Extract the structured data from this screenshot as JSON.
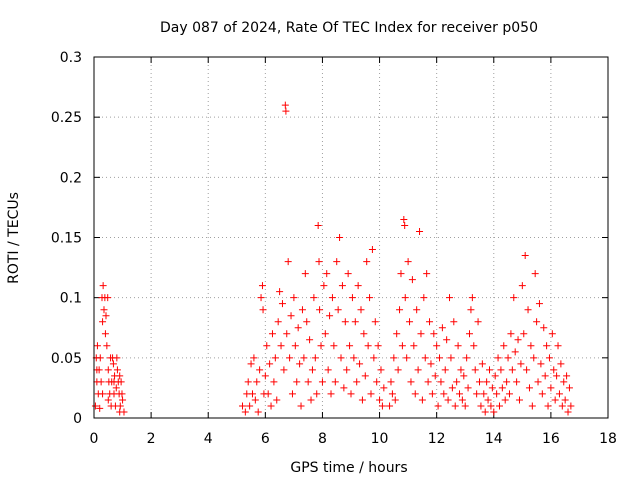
{
  "chart_data": {
    "type": "scatter",
    "title": "Day 087 of 2024, Rate Of TEC Index for receiver p050",
    "xlabel": "GPS time / hours",
    "ylabel": "ROTI / TECUs",
    "xlim": [
      0,
      18
    ],
    "ylim": [
      0,
      0.3
    ],
    "xticks": [
      0,
      2,
      4,
      6,
      8,
      10,
      12,
      14,
      16,
      18
    ],
    "xtick_labels": [
      "0",
      "2",
      "4",
      "6",
      "8",
      "10",
      "12",
      "14",
      "16",
      "18"
    ],
    "yticks": [
      0,
      0.05,
      0.1,
      0.15,
      0.2,
      0.25,
      0.3
    ],
    "ytick_labels": [
      "0",
      "0.05",
      "0.1",
      "0.15",
      "0.2",
      "0.25",
      "0.3"
    ],
    "grid": true,
    "marker": "+",
    "color": "#ff0000",
    "series": [
      {
        "name": "ROTI",
        "points": [
          [
            0.05,
            0.01
          ],
          [
            0.08,
            0.05
          ],
          [
            0.1,
            0.03
          ],
          [
            0.12,
            0.06
          ],
          [
            0.15,
            0.02
          ],
          [
            0.18,
            0.04
          ],
          [
            0.2,
            0.008
          ],
          [
            0.22,
            0.05
          ],
          [
            0.25,
            0.03
          ],
          [
            0.28,
            0.1
          ],
          [
            0.3,
            0.08
          ],
          [
            0.32,
            0.11
          ],
          [
            0.35,
            0.09
          ],
          [
            0.38,
            0.1
          ],
          [
            0.4,
            0.07
          ],
          [
            0.42,
            0.085
          ],
          [
            0.45,
            0.06
          ],
          [
            0.48,
            0.1
          ],
          [
            0.5,
            0.04
          ],
          [
            0.52,
            0.03
          ],
          [
            0.55,
            0.02
          ],
          [
            0.58,
            0.05
          ],
          [
            0.6,
            0.01
          ],
          [
            0.62,
            0.03
          ],
          [
            0.65,
            0.05
          ],
          [
            0.68,
            0.045
          ],
          [
            0.7,
            0.02
          ],
          [
            0.72,
            0.035
          ],
          [
            0.75,
            0.01
          ],
          [
            0.78,
            0.025
          ],
          [
            0.8,
            0.05
          ],
          [
            0.82,
            0.04
          ],
          [
            0.85,
            0.03
          ],
          [
            0.88,
            0.02
          ],
          [
            0.9,
            0.035
          ],
          [
            0.92,
            0.01
          ],
          [
            0.95,
            0.03
          ],
          [
            0.98,
            0.02
          ],
          [
            1.0,
            0.015
          ],
          [
            1.05,
            0.005
          ],
          [
            0.1,
            0.04
          ],
          [
            0.3,
            0.02
          ],
          [
            0.5,
            0.015
          ],
          [
            0.7,
            0.03
          ],
          [
            0.9,
            0.005
          ],
          [
            5.2,
            0.01
          ],
          [
            5.3,
            0.005
          ],
          [
            5.35,
            0.02
          ],
          [
            5.4,
            0.03
          ],
          [
            5.45,
            0.01
          ],
          [
            5.5,
            0.045
          ],
          [
            5.55,
            0.02
          ],
          [
            5.6,
            0.05
          ],
          [
            5.65,
            0.015
          ],
          [
            5.7,
            0.03
          ],
          [
            5.75,
            0.005
          ],
          [
            5.8,
            0.04
          ],
          [
            5.85,
            0.1
          ],
          [
            5.9,
            0.11
          ],
          [
            5.92,
            0.09
          ],
          [
            5.95,
            0.02
          ],
          [
            6.0,
            0.035
          ],
          [
            6.05,
            0.06
          ],
          [
            6.1,
            0.02
          ],
          [
            6.15,
            0.045
          ],
          [
            6.2,
            0.01
          ],
          [
            6.25,
            0.07
          ],
          [
            6.3,
            0.03
          ],
          [
            6.35,
            0.05
          ],
          [
            6.4,
            0.015
          ],
          [
            6.45,
            0.08
          ],
          [
            6.5,
            0.105
          ],
          [
            6.55,
            0.06
          ],
          [
            6.6,
            0.095
          ],
          [
            6.65,
            0.04
          ],
          [
            6.7,
            0.26
          ],
          [
            6.72,
            0.255
          ],
          [
            6.75,
            0.07
          ],
          [
            6.8,
            0.13
          ],
          [
            6.85,
            0.05
          ],
          [
            6.9,
            0.085
          ],
          [
            6.95,
            0.02
          ],
          [
            7.0,
            0.1
          ],
          [
            7.05,
            0.06
          ],
          [
            7.1,
            0.03
          ],
          [
            7.15,
            0.075
          ],
          [
            7.2,
            0.045
          ],
          [
            7.25,
            0.01
          ],
          [
            7.3,
            0.09
          ],
          [
            7.35,
            0.05
          ],
          [
            7.4,
            0.12
          ],
          [
            7.45,
            0.08
          ],
          [
            7.5,
            0.03
          ],
          [
            7.55,
            0.065
          ],
          [
            7.6,
            0.015
          ],
          [
            7.65,
            0.04
          ],
          [
            7.7,
            0.1
          ],
          [
            7.75,
            0.05
          ],
          [
            7.8,
            0.02
          ],
          [
            7.85,
            0.16
          ],
          [
            7.88,
            0.13
          ],
          [
            7.9,
            0.09
          ],
          [
            7.95,
            0.06
          ],
          [
            8.0,
            0.03
          ],
          [
            8.05,
            0.11
          ],
          [
            8.1,
            0.07
          ],
          [
            8.15,
            0.12
          ],
          [
            8.2,
            0.04
          ],
          [
            8.25,
            0.085
          ],
          [
            8.3,
            0.02
          ],
          [
            8.35,
            0.1
          ],
          [
            8.4,
            0.06
          ],
          [
            8.45,
            0.03
          ],
          [
            8.5,
            0.13
          ],
          [
            8.55,
            0.09
          ],
          [
            8.6,
            0.15
          ],
          [
            8.65,
            0.05
          ],
          [
            8.7,
            0.11
          ],
          [
            8.75,
            0.025
          ],
          [
            8.8,
            0.08
          ],
          [
            8.85,
            0.04
          ],
          [
            8.9,
            0.12
          ],
          [
            8.95,
            0.06
          ],
          [
            9.0,
            0.02
          ],
          [
            9.05,
            0.1
          ],
          [
            9.1,
            0.05
          ],
          [
            9.15,
            0.08
          ],
          [
            9.2,
            0.03
          ],
          [
            9.25,
            0.11
          ],
          [
            9.3,
            0.045
          ],
          [
            9.35,
            0.09
          ],
          [
            9.4,
            0.015
          ],
          [
            9.45,
            0.07
          ],
          [
            9.5,
            0.035
          ],
          [
            9.55,
            0.13
          ],
          [
            9.6,
            0.06
          ],
          [
            9.65,
            0.1
          ],
          [
            9.7,
            0.02
          ],
          [
            9.75,
            0.14
          ],
          [
            9.8,
            0.05
          ],
          [
            9.85,
            0.08
          ],
          [
            9.9,
            0.03
          ],
          [
            9.95,
            0.06
          ],
          [
            10.0,
            0.015
          ],
          [
            10.05,
            0.04
          ],
          [
            10.1,
            0.01
          ],
          [
            10.15,
            0.025
          ],
          [
            10.35,
            0.01
          ],
          [
            10.4,
            0.03
          ],
          [
            10.45,
            0.02
          ],
          [
            10.5,
            0.05
          ],
          [
            10.55,
            0.015
          ],
          [
            10.6,
            0.07
          ],
          [
            10.65,
            0.04
          ],
          [
            10.7,
            0.09
          ],
          [
            10.75,
            0.12
          ],
          [
            10.8,
            0.06
          ],
          [
            10.85,
            0.165
          ],
          [
            10.88,
            0.16
          ],
          [
            10.9,
            0.1
          ],
          [
            10.95,
            0.05
          ],
          [
            11.0,
            0.13
          ],
          [
            11.05,
            0.08
          ],
          [
            11.1,
            0.03
          ],
          [
            11.15,
            0.115
          ],
          [
            11.2,
            0.06
          ],
          [
            11.25,
            0.02
          ],
          [
            11.3,
            0.09
          ],
          [
            11.35,
            0.04
          ],
          [
            11.4,
            0.155
          ],
          [
            11.45,
            0.07
          ],
          [
            11.5,
            0.015
          ],
          [
            11.55,
            0.1
          ],
          [
            11.6,
            0.05
          ],
          [
            11.65,
            0.12
          ],
          [
            11.7,
            0.03
          ],
          [
            11.75,
            0.08
          ],
          [
            11.8,
            0.045
          ],
          [
            11.85,
            0.02
          ],
          [
            11.9,
            0.07
          ],
          [
            11.95,
            0.035
          ],
          [
            12.0,
            0.06
          ],
          [
            12.05,
            0.01
          ],
          [
            12.1,
            0.05
          ],
          [
            12.15,
            0.03
          ],
          [
            12.2,
            0.075
          ],
          [
            12.25,
            0.02
          ],
          [
            12.3,
            0.04
          ],
          [
            12.35,
            0.065
          ],
          [
            12.4,
            0.015
          ],
          [
            12.45,
            0.1
          ],
          [
            12.5,
            0.05
          ],
          [
            12.55,
            0.025
          ],
          [
            12.6,
            0.08
          ],
          [
            12.65,
            0.01
          ],
          [
            12.7,
            0.03
          ],
          [
            12.75,
            0.06
          ],
          [
            12.8,
            0.02
          ],
          [
            12.85,
            0.04
          ],
          [
            12.9,
            0.015
          ],
          [
            12.95,
            0.035
          ],
          [
            13.0,
            0.01
          ],
          [
            13.05,
            0.05
          ],
          [
            13.1,
            0.025
          ],
          [
            13.15,
            0.07
          ],
          [
            13.2,
            0.09
          ],
          [
            13.25,
            0.1
          ],
          [
            13.3,
            0.06
          ],
          [
            13.35,
            0.04
          ],
          [
            13.4,
            0.02
          ],
          [
            13.45,
            0.08
          ],
          [
            13.5,
            0.03
          ],
          [
            13.55,
            0.01
          ],
          [
            13.6,
            0.045
          ],
          [
            13.65,
            0.02
          ],
          [
            13.7,
            0.005
          ],
          [
            13.75,
            0.03
          ],
          [
            13.8,
            0.015
          ],
          [
            13.85,
            0.04
          ],
          [
            13.9,
            0.01
          ],
          [
            13.95,
            0.025
          ],
          [
            14.0,
            0.005
          ],
          [
            14.05,
            0.035
          ],
          [
            14.1,
            0.02
          ],
          [
            14.15,
            0.05
          ],
          [
            14.2,
            0.01
          ],
          [
            14.25,
            0.04
          ],
          [
            14.3,
            0.025
          ],
          [
            14.35,
            0.06
          ],
          [
            14.4,
            0.015
          ],
          [
            14.45,
            0.03
          ],
          [
            14.5,
            0.05
          ],
          [
            14.55,
            0.02
          ],
          [
            14.6,
            0.07
          ],
          [
            14.65,
            0.04
          ],
          [
            14.7,
            0.1
          ],
          [
            14.75,
            0.055
          ],
          [
            14.8,
            0.03
          ],
          [
            14.85,
            0.065
          ],
          [
            14.9,
            0.015
          ],
          [
            14.95,
            0.045
          ],
          [
            15.0,
            0.11
          ],
          [
            15.05,
            0.07
          ],
          [
            15.1,
            0.135
          ],
          [
            15.15,
            0.04
          ],
          [
            15.2,
            0.09
          ],
          [
            15.25,
            0.025
          ],
          [
            15.3,
            0.06
          ],
          [
            15.35,
            0.01
          ],
          [
            15.4,
            0.05
          ],
          [
            15.45,
            0.12
          ],
          [
            15.5,
            0.08
          ],
          [
            15.55,
            0.03
          ],
          [
            15.6,
            0.095
          ],
          [
            15.65,
            0.045
          ],
          [
            15.7,
            0.02
          ],
          [
            15.75,
            0.075
          ],
          [
            15.8,
            0.035
          ],
          [
            15.85,
            0.06
          ],
          [
            15.9,
            0.01
          ],
          [
            15.95,
            0.05
          ],
          [
            16.0,
            0.025
          ],
          [
            16.05,
            0.07
          ],
          [
            16.1,
            0.04
          ],
          [
            16.15,
            0.015
          ],
          [
            16.2,
            0.035
          ],
          [
            16.25,
            0.06
          ],
          [
            16.3,
            0.02
          ],
          [
            16.35,
            0.045
          ],
          [
            16.4,
            0.01
          ],
          [
            16.45,
            0.03
          ],
          [
            16.5,
            0.015
          ],
          [
            16.55,
            0.035
          ],
          [
            16.6,
            0.005
          ],
          [
            16.65,
            0.025
          ],
          [
            16.7,
            0.01
          ]
        ]
      }
    ]
  }
}
